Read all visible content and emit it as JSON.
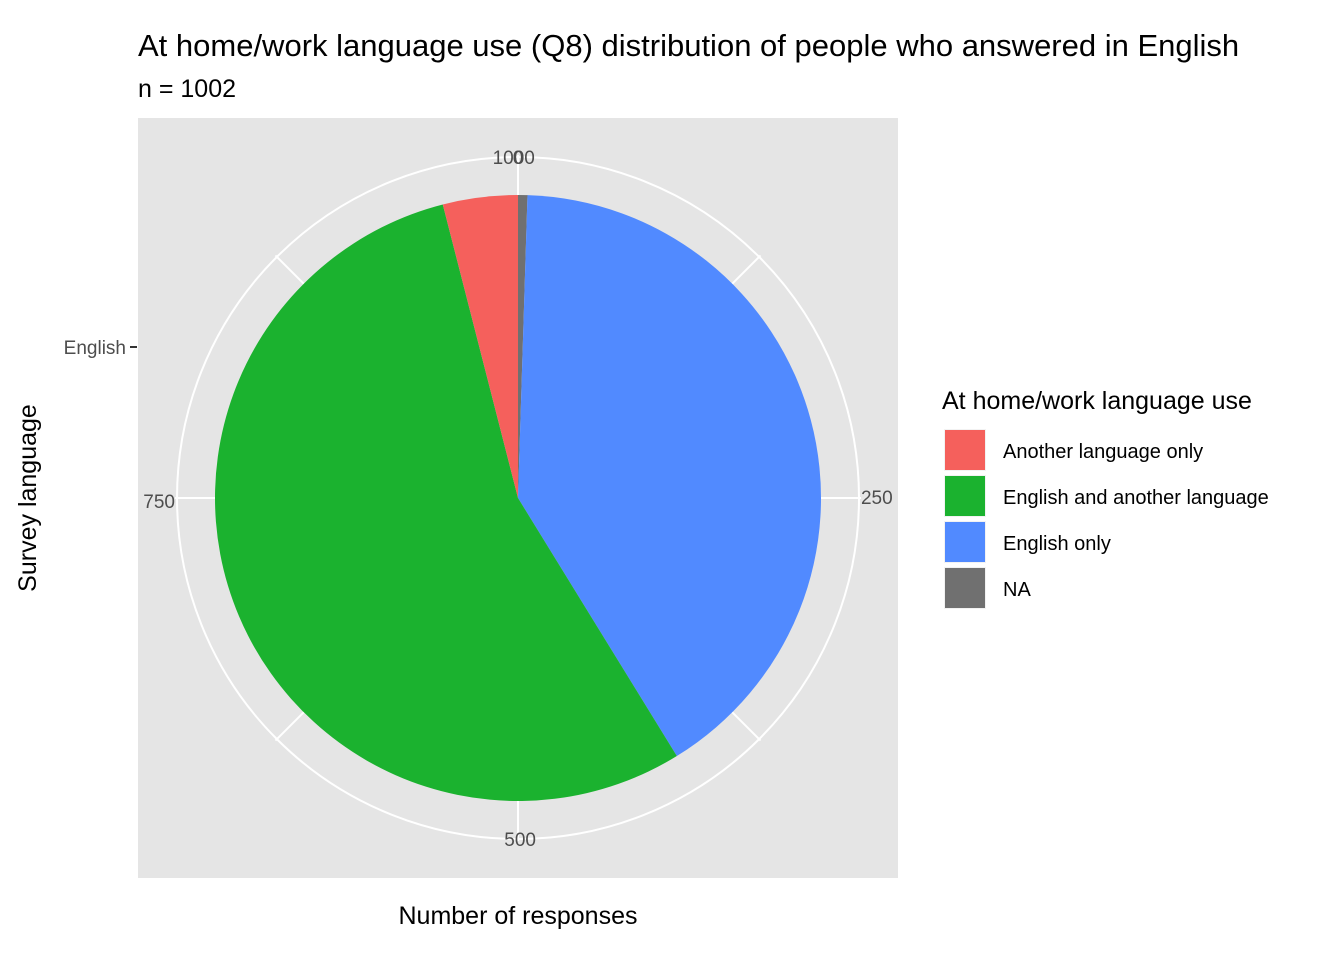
{
  "chart_data": {
    "type": "pie",
    "title": "At home/work language use (Q8) distribution of people who answered in English",
    "subtitle": "n = 1002",
    "xlabel": "Number of responses",
    "ylabel": "Survey language",
    "category_axis_label": "English",
    "radial_ticks": [
      {
        "value": 0,
        "label": "0"
      },
      {
        "value": 250,
        "label": "250"
      },
      {
        "value": 500,
        "label": "500"
      },
      {
        "value": 750,
        "label": "750"
      },
      {
        "value": 1000,
        "label": "1000"
      }
    ],
    "total": 1002,
    "slices": [
      {
        "label": "NA",
        "value": 5,
        "color": "#707070"
      },
      {
        "label": "English only",
        "value": 408,
        "color": "#518AFF"
      },
      {
        "label": "English and another language",
        "value": 549,
        "color": "#1BB22F"
      },
      {
        "label": "Another language only",
        "value": 40,
        "color": "#F5605C"
      }
    ],
    "legend": {
      "title": "At home/work language use",
      "position": "right",
      "items": [
        {
          "label": "Another language only",
          "color": "#F5605C"
        },
        {
          "label": "English and another language",
          "color": "#1BB22F"
        },
        {
          "label": "English only",
          "color": "#518AFF"
        },
        {
          "label": "NA",
          "color": "#707070"
        }
      ]
    },
    "panel_background": "#E5E5E5",
    "grid": true
  }
}
